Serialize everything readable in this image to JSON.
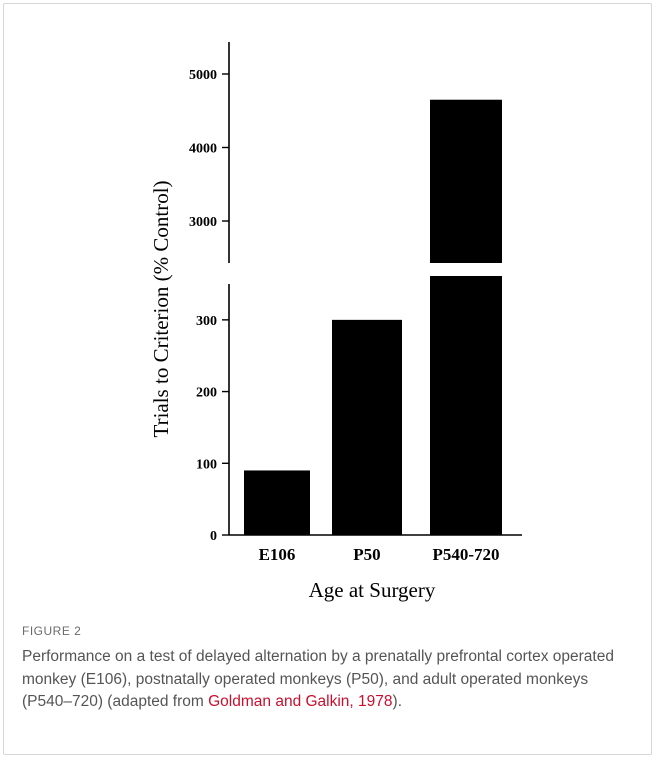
{
  "chart_data": {
    "type": "bar",
    "categories": [
      "E106",
      "P50",
      "P540-720"
    ],
    "values": [
      90,
      300,
      4650
    ],
    "xlabel": "Age at Surgery",
    "ylabel": "Trials to Criterion (% Control)",
    "y_axis_broken": true,
    "lower_segment": {
      "ylim": [
        0,
        350
      ],
      "ticks": [
        0,
        100,
        200,
        300
      ]
    },
    "upper_segment": {
      "ylim": [
        2400,
        5150
      ],
      "ticks": [
        3000,
        4000,
        5000
      ]
    },
    "bar_color": "#000000"
  },
  "caption": {
    "label": "FIGURE 2",
    "text_before": "Performance on a test of delayed alternation by a prenatally prefrontal cortex operated monkey (E106), postnatally operated monkeys (P50), and adult operated monkeys (P540–720) (adapted from ",
    "link_text": "Goldman and Galkin, 1978",
    "text_after": ")."
  },
  "colors": {
    "link": "#c8102e",
    "caption_text": "#555555",
    "frame_border": "#d6d6d6"
  }
}
